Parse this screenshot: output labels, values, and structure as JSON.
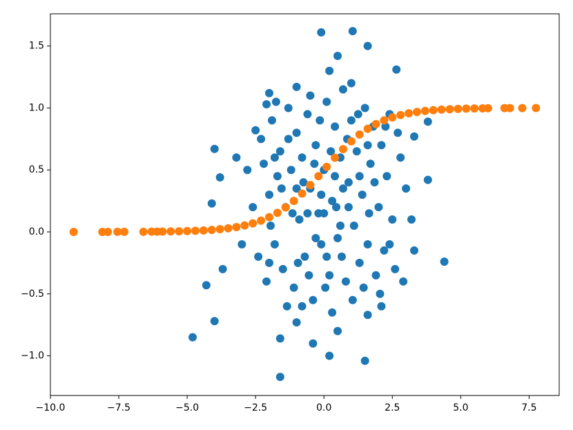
{
  "chart_data": {
    "type": "scatter",
    "xlim": [
      -10.0,
      8.6
    ],
    "ylim": [
      -1.32,
      1.76
    ],
    "xticks": [
      {
        "value": -10,
        "label": "−10.0"
      },
      {
        "value": -7.5,
        "label": "−7.5"
      },
      {
        "value": -5,
        "label": "−5.0"
      },
      {
        "value": -2.5,
        "label": "−2.5"
      },
      {
        "value": 0,
        "label": "0.0"
      },
      2.5,
      {
        "value": 5,
        "label": "5.0"
      },
      7.5
    ],
    "yticks": [
      {
        "value": -1,
        "label": "−1.0"
      },
      {
        "value": -0.5,
        "label": "−0.5"
      },
      {
        "value": 0,
        "label": "0.0"
      },
      0.5,
      {
        "value": 1,
        "label": "1.0"
      },
      1.5
    ],
    "series": [
      {
        "color": "#1f77b4",
        "x": [
          -0.1,
          1.05,
          1.6,
          0.5,
          2.65,
          -4.0,
          -4.8,
          -4.0,
          -4.3,
          -3.7,
          -1.6,
          1.5,
          0.2,
          -1.6,
          4.4,
          3.8,
          3.8,
          3.3,
          -3.8,
          -4.1,
          -3.2,
          -2.5,
          -2.1,
          -2.0,
          -1.0,
          -0.4,
          0.5,
          -1.0,
          1.6,
          2.1,
          3.0,
          3.3,
          2.9,
          -2.3,
          -2.2,
          -2.0,
          -1.9,
          -1.8,
          -1.7,
          -1.6,
          -1.5,
          -1.4,
          -1.3,
          -1.2,
          -1.1,
          -1.0,
          -0.9,
          -0.8,
          -0.7,
          -0.6,
          -0.5,
          -0.4,
          -0.3,
          -0.2,
          -0.1,
          0.0,
          0.1,
          0.2,
          0.3,
          0.4,
          0.5,
          0.6,
          0.7,
          0.8,
          0.9,
          1.0,
          1.1,
          1.2,
          1.3,
          1.4,
          1.5,
          1.6,
          1.7,
          1.8,
          1.9,
          2.0,
          2.1,
          2.2,
          2.3,
          2.4,
          2.5,
          2.6,
          2.8,
          -2.6,
          -2.4,
          -2.1,
          -1.95,
          -1.75,
          -1.55,
          -1.35,
          -1.15,
          -0.95,
          -0.75,
          -0.55,
          -0.35,
          -0.15,
          0.05,
          0.25,
          0.45,
          0.65,
          0.85,
          1.05,
          1.25,
          1.45,
          1.65,
          1.85,
          2.05,
          2.25,
          -0.8,
          0.3,
          -1.3,
          1.0,
          0.2,
          -0.5,
          -1.8,
          2.7,
          -2.8,
          3.2,
          -3.0,
          0.6,
          -0.1,
          0.9,
          -0.3,
          1.3,
          -1.0,
          0.4,
          0.0,
          0.7,
          -0.6,
          1.6,
          -2.0,
          2.4,
          0.1
        ],
        "y": [
          1.61,
          1.62,
          1.5,
          1.42,
          1.31,
          0.67,
          -0.85,
          -0.72,
          -0.43,
          -0.3,
          -1.17,
          -1.04,
          -1.0,
          -0.86,
          -0.24,
          0.42,
          0.89,
          -0.15,
          0.44,
          0.23,
          0.6,
          0.82,
          1.03,
          1.12,
          1.17,
          -0.9,
          -0.8,
          -0.73,
          -0.67,
          -0.6,
          0.35,
          0.77,
          -0.4,
          0.75,
          0.55,
          0.3,
          0.9,
          -0.1,
          0.45,
          0.65,
          -0.3,
          0.2,
          1.0,
          0.5,
          -0.45,
          0.8,
          0.1,
          0.6,
          -0.2,
          0.95,
          0.35,
          -0.55,
          0.7,
          0.15,
          -0.1,
          0.5,
          1.05,
          -0.35,
          0.25,
          0.85,
          -0.05,
          0.6,
          1.15,
          -0.4,
          0.4,
          0.9,
          0.05,
          0.65,
          -0.25,
          0.3,
          1.0,
          -0.1,
          0.55,
          0.85,
          -0.35,
          0.2,
          0.7,
          -0.15,
          0.45,
          0.95,
          0.1,
          -0.3,
          0.6,
          0.2,
          -0.2,
          -0.4,
          0.05,
          1.05,
          0.35,
          -0.6,
          0.15,
          -0.25,
          0.4,
          -0.35,
          0.55,
          0.9,
          -0.45,
          0.65,
          0.2,
          -0.2,
          0.75,
          -0.55,
          0.95,
          -0.45,
          0.15,
          0.4,
          -0.5,
          0.85,
          -0.6,
          -0.65,
          0.75,
          1.2,
          1.3,
          1.1,
          0.6,
          0.8,
          0.5,
          0.1,
          -0.1,
          0.05,
          0.3,
          0.2,
          -0.05,
          0.45,
          0.35,
          0.45,
          0.15,
          0.35,
          0.15,
          0.7,
          -0.25,
          -0.1,
          -0.2
        ]
      },
      {
        "color": "#ff7f0e",
        "x": [
          -9.15,
          -8.1,
          -7.9,
          -7.55,
          -7.3,
          -6.6,
          -6.3,
          -6.1,
          -5.9,
          -5.6,
          -5.3,
          -5.0,
          -4.7,
          -4.4,
          -4.1,
          -3.8,
          -3.5,
          -3.2,
          -2.9,
          -2.6,
          -2.3,
          -2.0,
          -1.7,
          -1.4,
          -1.1,
          -0.8,
          -0.5,
          -0.2,
          0.1,
          0.4,
          0.7,
          1.0,
          1.3,
          1.6,
          1.9,
          2.2,
          2.5,
          2.8,
          3.1,
          3.4,
          3.7,
          4.0,
          4.3,
          4.6,
          4.9,
          5.2,
          5.5,
          5.8,
          6.0,
          6.6,
          6.8,
          7.25,
          7.75
        ],
        "y": [
          0.0,
          0.0,
          0.0,
          0.001,
          0.001,
          0.001,
          0.002,
          0.002,
          0.003,
          0.004,
          0.005,
          0.007,
          0.009,
          0.012,
          0.016,
          0.022,
          0.029,
          0.039,
          0.052,
          0.069,
          0.091,
          0.119,
          0.154,
          0.198,
          0.25,
          0.31,
          0.378,
          0.45,
          0.525,
          0.599,
          0.668,
          0.731,
          0.786,
          0.832,
          0.87,
          0.9,
          0.924,
          0.943,
          0.957,
          0.968,
          0.976,
          0.982,
          0.987,
          0.99,
          0.993,
          0.995,
          0.996,
          0.997,
          0.998,
          0.999,
          0.999,
          0.999,
          1.0
        ]
      }
    ]
  }
}
